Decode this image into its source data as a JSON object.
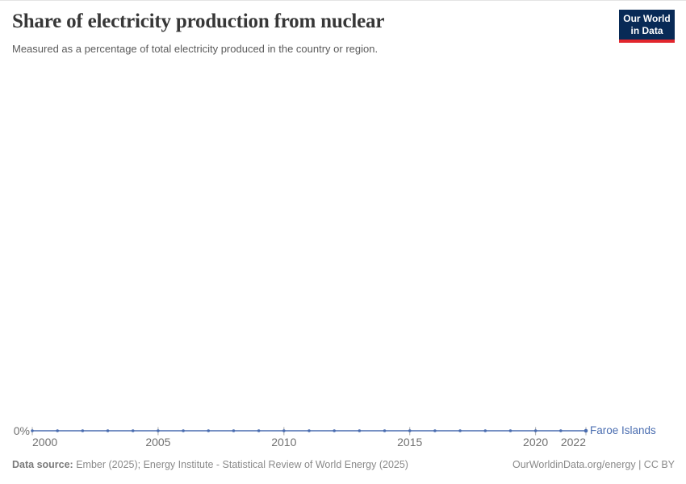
{
  "header": {
    "title": "Share of electricity production from nuclear",
    "subtitle": "Measured as a percentage of total electricity produced in the country or region."
  },
  "logo": {
    "line1": "Our World",
    "line2": "in Data",
    "bg_color": "#082a56",
    "accent_color": "#e2262d"
  },
  "chart_data": {
    "type": "line",
    "title": "Share of electricity production from nuclear",
    "subtitle": "Measured as a percentage of total electricity produced in the country or region.",
    "x": [
      2000,
      2001,
      2002,
      2003,
      2004,
      2005,
      2006,
      2007,
      2008,
      2009,
      2010,
      2011,
      2012,
      2013,
      2014,
      2015,
      2016,
      2017,
      2018,
      2019,
      2020,
      2021,
      2022
    ],
    "series": [
      {
        "name": "Faroe Islands",
        "color": "#4a6db0",
        "values": [
          0,
          0,
          0,
          0,
          0,
          0,
          0,
          0,
          0,
          0,
          0,
          0,
          0,
          0,
          0,
          0,
          0,
          0,
          0,
          0,
          0,
          0,
          0
        ]
      }
    ],
    "x_tick_labels": [
      "2000",
      "2005",
      "2010",
      "2015",
      "2020",
      "2022"
    ],
    "y_tick_label": "0%",
    "xlabel": "",
    "ylabel": "",
    "unit": "%",
    "xlim": [
      2000,
      2022
    ],
    "ylim": [
      0,
      0
    ],
    "grid": false,
    "markers": true,
    "legend_position": "right-of-line-end"
  },
  "footer": {
    "data_source_label": "Data source:",
    "data_source_text": " Ember (2025); Energy Institute - Statistical Review of World Energy (2025)",
    "right_text": "OurWorldinData.org/energy | CC BY"
  }
}
